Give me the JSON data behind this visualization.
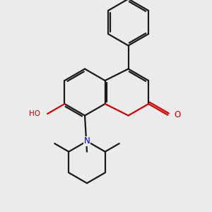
{
  "background_color": "#ebebeb",
  "bond_color": "#1a1a1a",
  "oxygen_color": "#cc0000",
  "nitrogen_color": "#0000bb",
  "line_width": 1.6,
  "figsize": [
    3.0,
    3.0
  ],
  "dpi": 100,
  "xlim": [
    0,
    10
  ],
  "ylim": [
    0,
    10
  ]
}
